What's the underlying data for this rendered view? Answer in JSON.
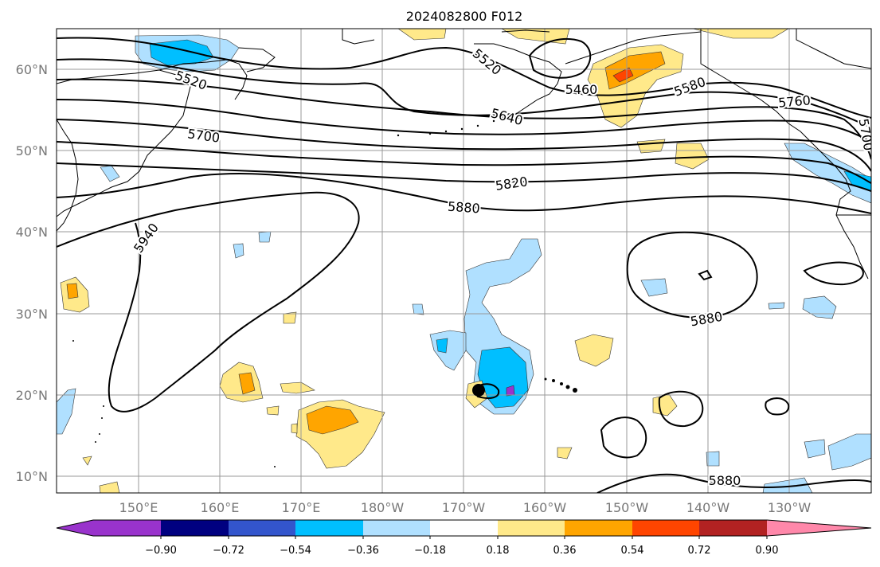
{
  "title": "2024082800 F012",
  "lat_labels": [
    "60°N",
    "50°N",
    "40°N",
    "30°N",
    "20°N",
    "10°N"
  ],
  "lon_labels": [
    "150°E",
    "160°E",
    "170°E",
    "180°W",
    "170°W",
    "160°W",
    "150°W",
    "140°W",
    "130°W"
  ],
  "contour_labels": [
    "5520",
    "5520",
    "5460",
    "5580",
    "5640",
    "5700",
    "5760",
    "5700",
    "5820",
    "5880",
    "5940",
    "5880",
    "5880"
  ],
  "colorbar": {
    "colors": [
      "#9933cc",
      "#000080",
      "#3355cc",
      "#00bfff",
      "#b0e0ff",
      "#ffffff",
      "#ffe98a",
      "#ffa500",
      "#ff4500",
      "#b22222",
      "#ff88aa"
    ],
    "tick_labels": [
      "−0.90",
      "−0.72",
      "−0.54",
      "−0.36",
      "−0.18",
      "0.18",
      "0.36",
      "0.54",
      "0.72",
      "0.90"
    ]
  }
}
